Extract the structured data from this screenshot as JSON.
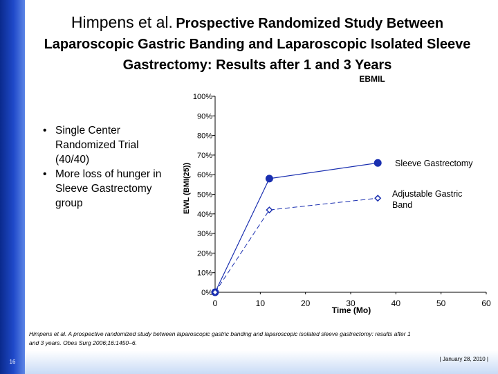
{
  "slide": {
    "title_lead": "Himpens et al.",
    "title_rest": "Prospective Randomized Study Between Laparoscopic Gastric Banding and Laparoscopic Isolated Sleeve Gastrectomy: Results after 1 and 3 Years",
    "bullets": [
      "Single Center Randomized Trial (40/40)",
      "More loss of hunger in Sleeve Gastrectomy group"
    ],
    "citation": "Himpens et al. A prospective randomized study between laparoscopic gastric banding and laparoscopic isolated sleeve gastrectomy: results after 1 and 3 years. Obes Surg 2006;16:1450–6.",
    "slide_number": "16",
    "footer_date": "| January 28, 2010 |"
  },
  "chart_data": {
    "type": "line",
    "title": "EBMIL",
    "xlabel": "Time (Mo)",
    "ylabel": "EWL (BMI(25))",
    "xlim": [
      0,
      60
    ],
    "ylim": [
      0,
      100
    ],
    "x_ticks": [
      "0",
      "10",
      "20",
      "30",
      "40",
      "50",
      "60"
    ],
    "y_ticks": [
      "0%",
      "10%",
      "20%",
      "30%",
      "40%",
      "50%",
      "60%",
      "70%",
      "80%",
      "90%",
      "100%"
    ],
    "grid": false,
    "series": [
      {
        "name": "Sleeve Gastrectomy",
        "x": [
          0,
          12,
          36
        ],
        "y": [
          0,
          58,
          66
        ],
        "color": "#1a2fb0",
        "marker": "circle",
        "line": "solid"
      },
      {
        "name": "Adjustable Gastric Band",
        "x": [
          0,
          12,
          36
        ],
        "y": [
          0,
          42,
          48
        ],
        "color": "#1a2fb0",
        "marker": "diamond",
        "line": "dashed"
      }
    ]
  }
}
